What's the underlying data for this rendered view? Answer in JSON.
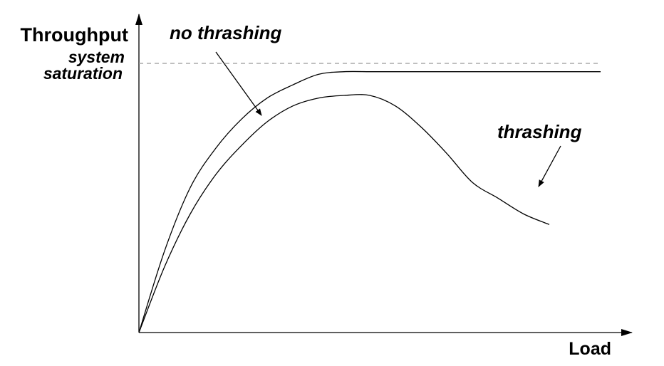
{
  "chart_data": {
    "type": "line",
    "xlabel": "Load",
    "ylabel": "Throughput",
    "saturation_label": [
      "system",
      "saturation"
    ],
    "saturation_level": 1.0,
    "xlim": [
      0,
      1
    ],
    "ylim": [
      0,
      1
    ],
    "grid": false,
    "series": [
      {
        "name": "no thrashing",
        "x": [
          0,
          0.05,
          0.1,
          0.15,
          0.2,
          0.25,
          0.3,
          0.35,
          0.4,
          0.45,
          0.5,
          0.6,
          0.7,
          0.8,
          0.9,
          0.9
        ],
        "y": [
          0,
          0.31,
          0.55,
          0.7,
          0.81,
          0.89,
          0.94,
          0.98,
          0.99,
          0.99,
          0.99,
          0.99,
          0.99,
          0.99,
          0.99,
          0.99
        ]
      },
      {
        "name": "thrashing",
        "x": [
          0,
          0.05,
          0.1,
          0.15,
          0.2,
          0.25,
          0.3,
          0.35,
          0.4,
          0.45,
          0.5,
          0.55,
          0.6,
          0.65,
          0.7,
          0.75,
          0.8
        ],
        "y": [
          0,
          0.25,
          0.45,
          0.6,
          0.71,
          0.8,
          0.86,
          0.89,
          0.9,
          0.9,
          0.86,
          0.78,
          0.68,
          0.57,
          0.51,
          0.45,
          0.41
        ]
      }
    ],
    "annotations": [
      {
        "text": "no thrashing",
        "series": 0
      },
      {
        "text": "thrashing",
        "series": 1
      }
    ],
    "colors": {
      "line": "#000000",
      "saturation": "#999999"
    }
  }
}
